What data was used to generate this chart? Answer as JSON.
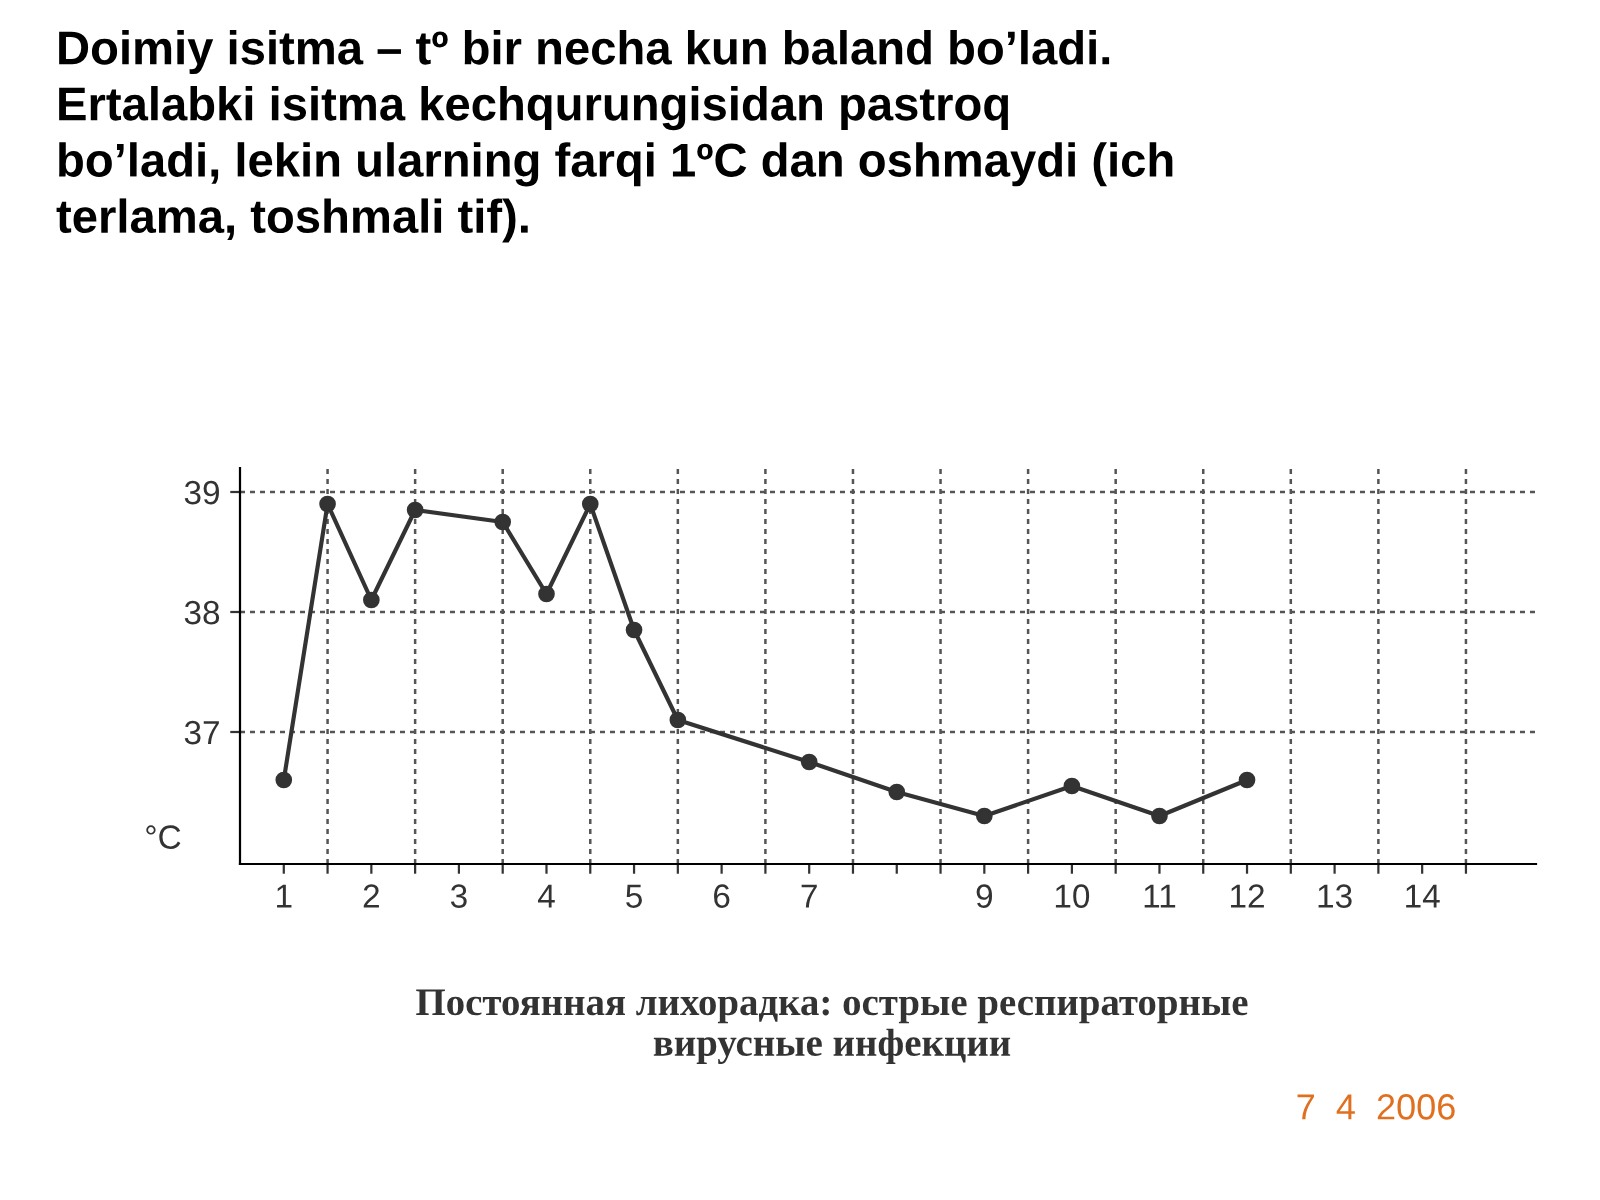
{
  "chart_data": {
    "type": "line",
    "title": "Doimiy isitma – tº bir necha kun baland bo’ladi.\nErtalabki isitma kechqurungisidan pastroq\nbo’ladi, lekin ularning farqi 1ºC dan oshmaydi (ich\nterlama, toshmali tif).",
    "ylabel": "°C",
    "annotations": [
      "Постоянная лихорадка: острые респираторные\nвирусные инфекции",
      "7  4  2006"
    ],
    "x": [
      1,
      1.5,
      2,
      2.5,
      3.5,
      4,
      4.5,
      5,
      5.5,
      7,
      8,
      9,
      10,
      11,
      12
    ],
    "series": [
      {
        "color": "#333333",
        "values": [
          36.6,
          38.9,
          38.1,
          38.85,
          38.75,
          38.15,
          38.9,
          37.85,
          37.1,
          36.75,
          36.5,
          36.3,
          36.55,
          36.3,
          36.6
        ]
      }
    ],
    "xlim": [
      0.5,
      15.3
    ],
    "ylim": [
      35.9,
      39.2
    ],
    "xticks": [
      1,
      2,
      3,
      4,
      5,
      6,
      7,
      {
        "value": 8,
        "label": null
      },
      9,
      10,
      11,
      12,
      13,
      14,
      {
        "value": 1.5,
        "label": null
      },
      {
        "value": 2.5,
        "label": null
      },
      {
        "value": 3.5,
        "label": null
      },
      {
        "value": 4.5,
        "label": null
      },
      {
        "value": 5.5,
        "label": null
      },
      {
        "value": 6.5,
        "label": null
      },
      {
        "value": 7.5,
        "label": null
      },
      {
        "value": 8.5,
        "label": null
      },
      {
        "value": 9.5,
        "label": null
      },
      {
        "value": 10.5,
        "label": null
      },
      {
        "value": 11.5,
        "label": null
      },
      {
        "value": 12.5,
        "label": null
      },
      {
        "value": 13.5,
        "label": null
      },
      {
        "value": 14.5,
        "label": null
      }
    ],
    "yticks": [
      37,
      38,
      39
    ],
    "grid": true,
    "marker": "circle",
    "line_style": "solid",
    "legend": false
  }
}
